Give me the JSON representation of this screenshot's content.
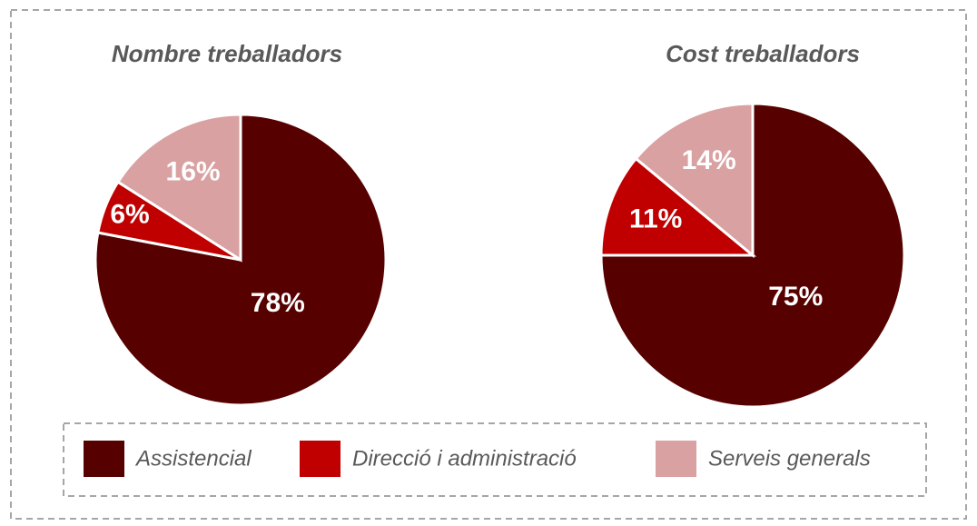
{
  "chart_data": [
    {
      "type": "pie",
      "title": "Nombre treballadors",
      "values": [
        78,
        6,
        16
      ],
      "value_labels": [
        "78%",
        "6%",
        "16%"
      ]
    },
    {
      "type": "pie",
      "title": "Cost treballadors",
      "values": [
        75,
        11,
        14
      ],
      "value_labels": [
        "75%",
        "11%",
        "14%"
      ]
    }
  ],
  "legend": {
    "labels": [
      "Assistencial",
      "Direcció i administració",
      "Serveis generals"
    ],
    "colors": [
      "#560000",
      "#c00000",
      "#d9a1a1"
    ]
  }
}
